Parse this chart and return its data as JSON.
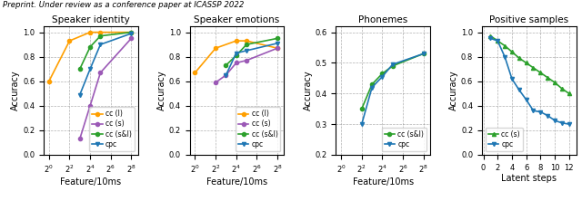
{
  "suptitle": "Preprint. Under review as a conference paper at ICASSP 2022",
  "colors": {
    "cc_l": "#ff9f00",
    "cc_s": "#9b59b6",
    "cc_sl": "#2ca02c",
    "cpc": "#1f77b4"
  },
  "panel_a": {
    "title": "Speaker identity",
    "xlabel": "Feature/10ms",
    "ylabel": "Accuracy",
    "x_ticks": [
      1,
      4,
      16,
      64,
      256
    ],
    "x_ticklabels": [
      "$2^0$",
      "$2^2$",
      "$2^4$",
      "$2^6$",
      "$2^8$"
    ],
    "ylim": [
      0.0,
      1.05
    ],
    "yticks": [
      0.0,
      0.2,
      0.4,
      0.6,
      0.8,
      1.0
    ],
    "cc_l": {
      "x": [
        1,
        4,
        16,
        32,
        256
      ],
      "y": [
        0.6,
        0.93,
        1.0,
        1.0,
        1.0
      ]
    },
    "cc_s": {
      "x": [
        8,
        16,
        32,
        256
      ],
      "y": [
        0.13,
        0.4,
        0.67,
        0.95
      ]
    },
    "cc_sl": {
      "x": [
        8,
        16,
        32,
        256
      ],
      "y": [
        0.7,
        0.88,
        0.97,
        1.0
      ]
    },
    "cpc": {
      "x": [
        8,
        16,
        32,
        256
      ],
      "y": [
        0.49,
        0.7,
        0.9,
        0.99
      ]
    },
    "legend_loc": "lower right"
  },
  "panel_b": {
    "title": "Speaker emotions",
    "xlabel": "Feature/10ms",
    "ylabel": "Accuracy",
    "x_ticks": [
      1,
      4,
      16,
      64,
      256
    ],
    "x_ticklabels": [
      "$2^0$",
      "$2^2$",
      "$2^4$",
      "$2^6$",
      "$2^8$"
    ],
    "ylim": [
      0.0,
      1.05
    ],
    "yticks": [
      0.0,
      0.2,
      0.4,
      0.6,
      0.8,
      1.0
    ],
    "cc_l": {
      "x": [
        1,
        4,
        16,
        32,
        256
      ],
      "y": [
        0.67,
        0.87,
        0.93,
        0.93,
        0.87
      ]
    },
    "cc_s": {
      "x": [
        4,
        8,
        16,
        32,
        256
      ],
      "y": [
        0.59,
        0.65,
        0.75,
        0.77,
        0.87
      ]
    },
    "cc_sl": {
      "x": [
        8,
        16,
        32,
        256
      ],
      "y": [
        0.73,
        0.81,
        0.9,
        0.95
      ]
    },
    "cpc": {
      "x": [
        8,
        16,
        32,
        256
      ],
      "y": [
        0.65,
        0.83,
        0.85,
        0.91
      ]
    },
    "legend_loc": "lower right"
  },
  "panel_c": {
    "title": "Phonemes",
    "xlabel": "Feature/10ms",
    "ylabel": "Accuracy",
    "x_ticks": [
      1,
      4,
      16,
      64,
      256
    ],
    "x_ticklabels": [
      "$2^0$",
      "$2^2$",
      "$2^4$",
      "$2^6$",
      "$2^8$"
    ],
    "ylim": [
      0.2,
      0.62
    ],
    "yticks": [
      0.2,
      0.3,
      0.4,
      0.5,
      0.6
    ],
    "cc_sl": {
      "x": [
        4,
        8,
        16,
        32,
        256
      ],
      "y": [
        0.35,
        0.43,
        0.465,
        0.49,
        0.53
      ]
    },
    "cpc": {
      "x": [
        4,
        8,
        16,
        32,
        256
      ],
      "y": [
        0.3,
        0.42,
        0.455,
        0.495,
        0.53
      ]
    },
    "legend_loc": "lower right"
  },
  "panel_d": {
    "title": "Positive samples",
    "xlabel": "Latent steps",
    "ylabel": "Accuracy",
    "x_ticks": [
      0,
      2,
      4,
      6,
      8,
      10,
      12
    ],
    "ylim": [
      0.0,
      1.05
    ],
    "yticks": [
      0.0,
      0.2,
      0.4,
      0.6,
      0.8,
      1.0
    ],
    "cc_s": {
      "x": [
        1,
        2,
        3,
        4,
        5,
        6,
        7,
        8,
        9,
        10,
        11,
        12
      ],
      "y": [
        0.97,
        0.93,
        0.89,
        0.84,
        0.79,
        0.75,
        0.71,
        0.67,
        0.63,
        0.59,
        0.54,
        0.5
      ]
    },
    "cpc": {
      "x": [
        1,
        2,
        3,
        4,
        5,
        6,
        7,
        8,
        9,
        10,
        11,
        12
      ],
      "y": [
        0.95,
        0.93,
        0.8,
        0.62,
        0.53,
        0.45,
        0.36,
        0.35,
        0.32,
        0.28,
        0.26,
        0.25
      ]
    },
    "legend_loc": "lower left"
  }
}
